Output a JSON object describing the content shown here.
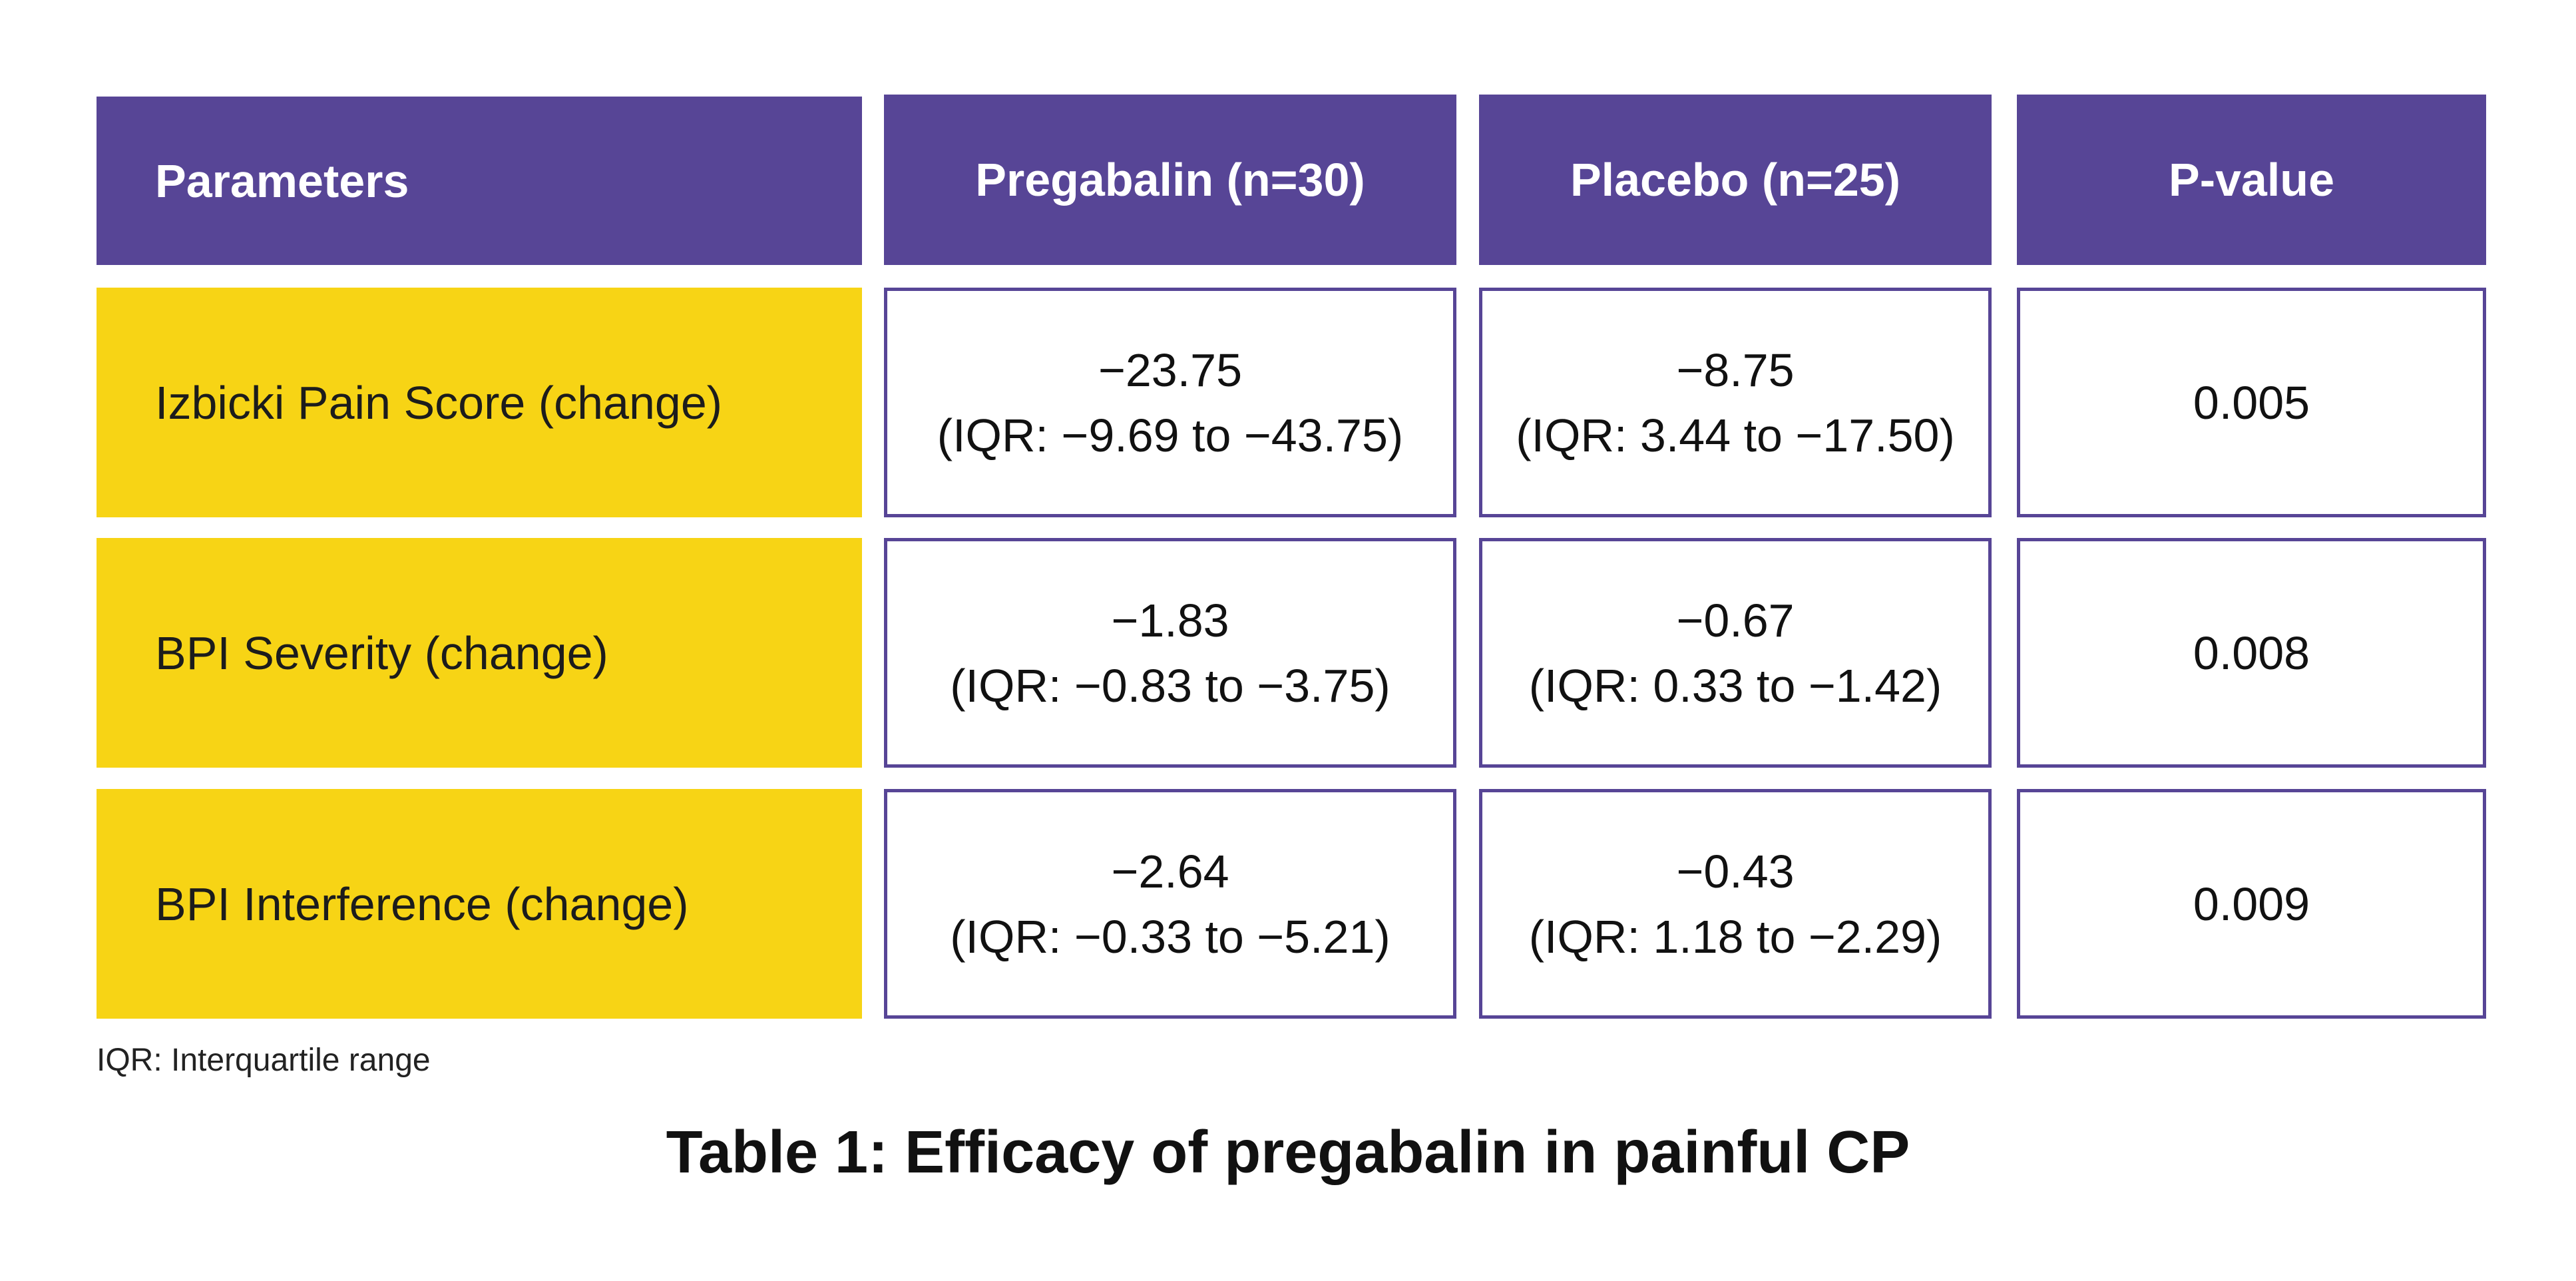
{
  "table": {
    "headers": [
      "Parameters",
      "Pregabalin (n=30)",
      "Placebo (n=25)",
      "P-value"
    ],
    "rows": [
      {
        "parameter": "Izbicki Pain Score (change)",
        "pregabalin_value": "−23.75",
        "pregabalin_iqr": "(IQR: −9.69 to −43.75)",
        "placebo_value": "−8.75",
        "placebo_iqr": "(IQR: 3.44 to −17.50)",
        "p_value": "0.005"
      },
      {
        "parameter": "BPI Severity (change)",
        "pregabalin_value": "−1.83",
        "pregabalin_iqr": "(IQR: −0.83 to −3.75)",
        "placebo_value": "−0.67",
        "placebo_iqr": "(IQR: 0.33 to −1.42)",
        "p_value": "0.008"
      },
      {
        "parameter": "BPI Interference (change)",
        "pregabalin_value": "−2.64",
        "pregabalin_iqr": "(IQR: −0.33 to −5.21)",
        "placebo_value": "−0.43",
        "placebo_iqr": "(IQR: 1.18 to −2.29)",
        "p_value": "0.009"
      }
    ]
  },
  "footnote": "IQR: Interquartile range",
  "caption": "Table 1: Efficacy of pregabalin in painful CP",
  "colors": {
    "header_bg": "#574596",
    "param_bg": "#f7d415",
    "border": "#574596"
  }
}
